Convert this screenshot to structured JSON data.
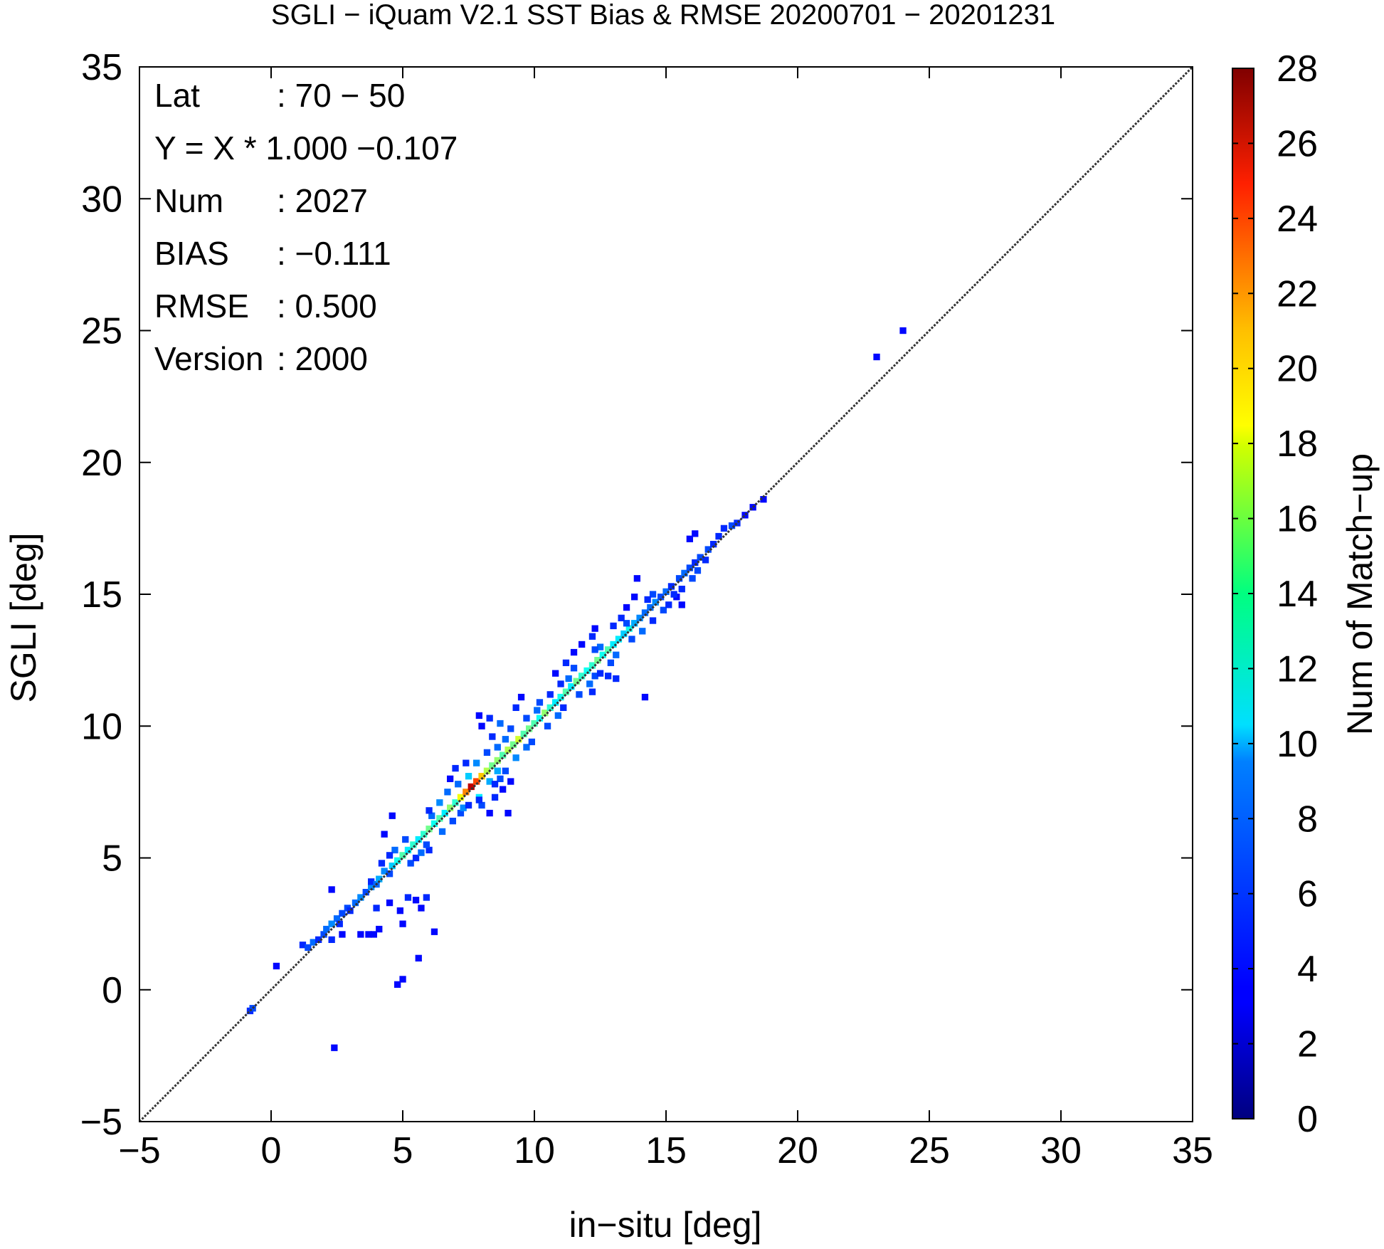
{
  "chart_data": {
    "type": "heatmap",
    "title": "SGLI − iQuam V2.1 SST Bias & RMSE 20200701 − 20201231",
    "xlabel": "in−situ [deg]",
    "ylabel": "SGLI [deg]",
    "xlim": [
      -5,
      35
    ],
    "ylim": [
      -5,
      35
    ],
    "xticks": [
      "−5",
      "0",
      "5",
      "10",
      "15",
      "20",
      "25",
      "30",
      "35"
    ],
    "yticks": [
      "−5",
      "0",
      "5",
      "10",
      "15",
      "20",
      "25",
      "30",
      "35"
    ],
    "one_to_one_line": true,
    "colorbar": {
      "label": "Num of Match−up",
      "min": 0,
      "max": 28,
      "ticks": [
        "0",
        "2",
        "4",
        "6",
        "8",
        "10",
        "12",
        "14",
        "16",
        "18",
        "20",
        "22",
        "24",
        "26",
        "28"
      ],
      "colormap": "jet"
    },
    "stats": [
      {
        "key": "Lat",
        "value": ": 70 − 50"
      },
      {
        "key": "Y = X * 1.000 −0.107",
        "value": ""
      },
      {
        "key": "Num",
        "value": ": 2027"
      },
      {
        "key": "BIAS",
        "value": ": −0.111"
      },
      {
        "key": "RMSE",
        "value": ": 0.500"
      },
      {
        "key": "Version",
        "value": ": 2000"
      }
    ],
    "cell_size_deg": 0.25,
    "points": [
      [
        -0.8,
        -0.8,
        2
      ],
      [
        -0.7,
        -0.7,
        3
      ],
      [
        0.2,
        0.9,
        1
      ],
      [
        2.4,
        -2.2,
        1
      ],
      [
        1.2,
        1.7,
        2
      ],
      [
        1.4,
        1.6,
        3
      ],
      [
        1.6,
        1.8,
        4
      ],
      [
        1.8,
        1.9,
        2
      ],
      [
        2.0,
        2.1,
        3
      ],
      [
        2.1,
        2.3,
        4
      ],
      [
        2.3,
        2.5,
        5
      ],
      [
        2.5,
        2.7,
        4
      ],
      [
        2.6,
        2.5,
        2
      ],
      [
        2.7,
        2.9,
        3
      ],
      [
        2.9,
        3.1,
        3
      ],
      [
        3.0,
        3.0,
        2
      ],
      [
        2.3,
        3.8,
        1
      ],
      [
        2.7,
        2.1,
        1
      ],
      [
        2.3,
        1.9,
        2
      ],
      [
        3.2,
        3.3,
        4
      ],
      [
        3.4,
        3.5,
        5
      ],
      [
        3.6,
        3.7,
        3
      ],
      [
        3.8,
        3.9,
        5
      ],
      [
        3.8,
        4.1,
        2
      ],
      [
        4.0,
        4.0,
        4
      ],
      [
        4.1,
        4.2,
        6
      ],
      [
        4.3,
        4.5,
        5
      ],
      [
        4.5,
        4.4,
        3
      ],
      [
        3.4,
        2.1,
        1
      ],
      [
        3.7,
        2.1,
        1
      ],
      [
        3.9,
        2.1,
        1
      ],
      [
        4.1,
        2.3,
        1
      ],
      [
        4.0,
        3.1,
        2
      ],
      [
        4.5,
        3.3,
        1
      ],
      [
        4.9,
        3.0,
        1
      ],
      [
        5.0,
        2.5,
        1
      ],
      [
        5.2,
        3.5,
        2
      ],
      [
        5.5,
        3.4,
        1
      ],
      [
        5.7,
        3.1,
        1
      ],
      [
        5.9,
        3.5,
        2
      ],
      [
        6.2,
        2.2,
        1
      ],
      [
        5.6,
        1.2,
        1
      ],
      [
        4.8,
        0.2,
        1
      ],
      [
        5.0,
        0.4,
        1
      ],
      [
        4.6,
        4.7,
        7
      ],
      [
        4.8,
        4.9,
        9
      ],
      [
        5.0,
        5.1,
        11
      ],
      [
        5.2,
        5.3,
        8
      ],
      [
        5.4,
        5.5,
        10
      ],
      [
        5.6,
        5.7,
        8
      ],
      [
        4.7,
        5.3,
        4
      ],
      [
        5.3,
        4.8,
        3
      ],
      [
        5.1,
        5.7,
        3
      ],
      [
        5.5,
        5.0,
        2
      ],
      [
        4.3,
        5.9,
        1
      ],
      [
        4.6,
        6.6,
        1
      ],
      [
        5.7,
        5.2,
        4
      ],
      [
        4.5,
        5.1,
        2
      ],
      [
        4.2,
        4.8,
        2
      ],
      [
        6.0,
        5.3,
        2
      ],
      [
        5.8,
        5.9,
        10
      ],
      [
        6.0,
        6.1,
        12
      ],
      [
        6.2,
        6.3,
        9
      ],
      [
        6.4,
        6.5,
        11
      ],
      [
        6.6,
        6.7,
        8
      ],
      [
        6.8,
        6.9,
        13
      ],
      [
        7.0,
        7.1,
        10
      ],
      [
        6.1,
        6.6,
        4
      ],
      [
        6.5,
        6.0,
        4
      ],
      [
        6.9,
        6.4,
        3
      ],
      [
        6.4,
        7.1,
        5
      ],
      [
        6.0,
        6.8,
        2
      ],
      [
        7.2,
        6.7,
        3
      ],
      [
        5.9,
        5.5,
        3
      ],
      [
        6.7,
        7.5,
        4
      ],
      [
        7.2,
        7.3,
        16
      ],
      [
        7.4,
        7.5,
        20
      ],
      [
        7.6,
        7.7,
        26
      ],
      [
        7.8,
        7.9,
        22
      ],
      [
        8.0,
        8.1,
        18
      ],
      [
        8.2,
        8.3,
        14
      ],
      [
        8.4,
        8.5,
        12
      ],
      [
        7.5,
        8.1,
        7
      ],
      [
        7.9,
        7.3,
        8
      ],
      [
        8.3,
        7.9,
        6
      ],
      [
        7.8,
        8.6,
        5
      ],
      [
        8.6,
        8.3,
        6
      ],
      [
        7.3,
        6.9,
        5
      ],
      [
        7.1,
        7.8,
        4
      ],
      [
        8.7,
        8.0,
        3
      ],
      [
        8.9,
        8.3,
        3
      ],
      [
        8.0,
        7.0,
        3
      ],
      [
        7.5,
        7.0,
        2
      ],
      [
        7.0,
        8.4,
        2
      ],
      [
        6.8,
        8.0,
        1
      ],
      [
        7.4,
        8.6,
        2
      ],
      [
        8.5,
        7.3,
        2
      ],
      [
        8.8,
        7.6,
        1
      ],
      [
        9.1,
        7.9,
        1
      ],
      [
        9.0,
        6.7,
        1
      ],
      [
        8.3,
        6.7,
        1
      ],
      [
        7.9,
        7.2,
        2
      ],
      [
        8.5,
        7.8,
        2
      ],
      [
        8.6,
        8.7,
        13
      ],
      [
        8.8,
        8.9,
        11
      ],
      [
        9.0,
        9.1,
        14
      ],
      [
        9.2,
        9.3,
        12
      ],
      [
        9.4,
        9.5,
        15
      ],
      [
        9.6,
        9.7,
        11
      ],
      [
        8.9,
        9.5,
        4
      ],
      [
        9.3,
        8.8,
        5
      ],
      [
        9.7,
        9.2,
        4
      ],
      [
        9.1,
        9.9,
        3
      ],
      [
        8.6,
        9.2,
        4
      ],
      [
        9.9,
        9.4,
        3
      ],
      [
        8.2,
        9.0,
        3
      ],
      [
        8.4,
        9.6,
        2
      ],
      [
        8.0,
        10.0,
        1
      ],
      [
        7.9,
        10.4,
        1
      ],
      [
        8.7,
        10.1,
        4
      ],
      [
        8.3,
        10.3,
        2
      ],
      [
        9.5,
        11.1,
        1
      ],
      [
        9.3,
        10.7,
        2
      ],
      [
        9.8,
        9.9,
        12
      ],
      [
        10.0,
        10.1,
        11
      ],
      [
        10.2,
        10.3,
        9
      ],
      [
        10.4,
        10.5,
        13
      ],
      [
        10.6,
        10.7,
        10
      ],
      [
        10.8,
        10.9,
        8
      ],
      [
        10.1,
        10.6,
        4
      ],
      [
        10.5,
        10.0,
        3
      ],
      [
        10.9,
        10.4,
        4
      ],
      [
        10.2,
        10.9,
        3
      ],
      [
        11.1,
        10.7,
        2
      ],
      [
        9.7,
        10.3,
        3
      ],
      [
        10.6,
        11.2,
        2
      ],
      [
        11.0,
        11.1,
        9
      ],
      [
        11.2,
        11.3,
        11
      ],
      [
        11.4,
        11.5,
        8
      ],
      [
        11.6,
        11.7,
        12
      ],
      [
        11.8,
        11.9,
        10
      ],
      [
        12.0,
        12.1,
        9
      ],
      [
        11.3,
        11.8,
        4
      ],
      [
        11.7,
        11.2,
        3
      ],
      [
        12.1,
        11.6,
        4
      ],
      [
        11.5,
        12.2,
        3
      ],
      [
        11.0,
        11.6,
        2
      ],
      [
        12.3,
        11.9,
        3
      ],
      [
        11.2,
        12.4,
        2
      ],
      [
        11.5,
        12.8,
        1
      ],
      [
        10.8,
        12.0,
        1
      ],
      [
        12.2,
        11.3,
        2
      ],
      [
        12.2,
        12.3,
        10
      ],
      [
        12.4,
        12.5,
        12
      ],
      [
        12.6,
        12.7,
        9
      ],
      [
        12.8,
        12.9,
        11
      ],
      [
        13.0,
        13.1,
        8
      ],
      [
        12.5,
        13.0,
        4
      ],
      [
        12.9,
        12.4,
        3
      ],
      [
        13.1,
        12.7,
        4
      ],
      [
        12.3,
        12.9,
        3
      ],
      [
        12.8,
        11.9,
        2
      ],
      [
        13.1,
        11.8,
        2
      ],
      [
        12.5,
        12.0,
        2
      ],
      [
        12.2,
        13.4,
        2
      ],
      [
        11.8,
        13.1,
        1
      ],
      [
        12.3,
        13.7,
        1
      ],
      [
        14.2,
        11.1,
        1
      ],
      [
        13.2,
        13.3,
        8
      ],
      [
        13.4,
        13.5,
        7
      ],
      [
        13.6,
        13.7,
        9
      ],
      [
        13.8,
        13.9,
        6
      ],
      [
        14.0,
        14.1,
        5
      ],
      [
        14.2,
        14.3,
        4
      ],
      [
        13.5,
        13.9,
        3
      ],
      [
        13.7,
        13.3,
        3
      ],
      [
        14.1,
        13.6,
        4
      ],
      [
        13.3,
        14.1,
        2
      ],
      [
        13.0,
        13.8,
        2
      ],
      [
        13.5,
        14.5,
        1
      ],
      [
        13.8,
        14.9,
        1
      ],
      [
        13.9,
        15.6,
        1
      ],
      [
        14.5,
        14.0,
        2
      ],
      [
        14.4,
        14.5,
        4
      ],
      [
        14.6,
        14.7,
        5
      ],
      [
        14.8,
        14.9,
        3
      ],
      [
        15.0,
        15.1,
        4
      ],
      [
        15.2,
        15.3,
        2
      ],
      [
        14.9,
        14.4,
        3
      ],
      [
        15.1,
        14.6,
        2
      ],
      [
        14.5,
        15.0,
        3
      ],
      [
        14.3,
        14.8,
        2
      ],
      [
        15.4,
        14.9,
        1
      ],
      [
        15.6,
        14.6,
        1
      ],
      [
        15.3,
        15.0,
        2
      ],
      [
        15.5,
        15.6,
        3
      ],
      [
        15.7,
        15.8,
        4
      ],
      [
        15.9,
        16.0,
        3
      ],
      [
        16.1,
        16.2,
        2
      ],
      [
        16.3,
        16.4,
        3
      ],
      [
        15.6,
        15.2,
        2
      ],
      [
        16.0,
        15.6,
        3
      ],
      [
        16.2,
        15.9,
        3
      ],
      [
        16.5,
        16.3,
        2
      ],
      [
        16.6,
        16.7,
        3
      ],
      [
        16.8,
        16.9,
        2
      ],
      [
        16.1,
        17.3,
        1
      ],
      [
        15.9,
        17.1,
        1
      ],
      [
        17.0,
        17.2,
        2
      ],
      [
        17.2,
        17.5,
        2
      ],
      [
        17.5,
        17.6,
        3
      ],
      [
        17.7,
        17.7,
        2
      ],
      [
        18.0,
        18.0,
        1
      ],
      [
        18.3,
        18.3,
        1
      ],
      [
        18.7,
        18.6,
        1
      ],
      [
        23.0,
        24.0,
        1
      ],
      [
        24.0,
        25.0,
        1
      ]
    ]
  }
}
